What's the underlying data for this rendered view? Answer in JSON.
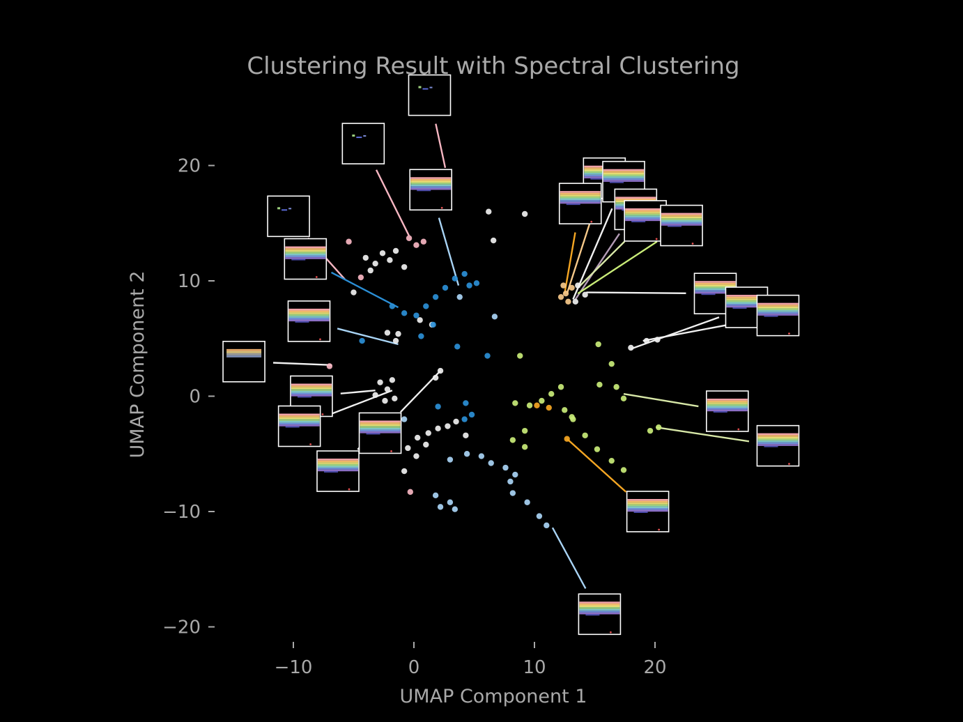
{
  "chart_data": {
    "type": "scatter",
    "title": "Clustering Result with Spectral Clustering",
    "xlabel": "UMAP Component 1",
    "ylabel": "UMAP Component 2",
    "xlim": [
      -10,
      20
    ],
    "ylim": [
      -20,
      20
    ],
    "xticks": [
      -10,
      0,
      10,
      20
    ],
    "yticks": [
      -20,
      -10,
      0,
      10,
      20
    ],
    "tick_labels_x": [
      "−10",
      "0",
      "10",
      "20"
    ],
    "tick_labels_y": [
      "−20",
      "−10",
      "0",
      "10",
      "20"
    ],
    "grid": false,
    "legend": "none",
    "cluster_colors": {
      "white": "#f0f0f0",
      "blue": "#2b8fd6",
      "light_blue": "#a9d4f5",
      "pink": "#f7b6c2",
      "lime": "#c9ec78",
      "orange": "#f5a623",
      "light_orange": "#f7c98a"
    },
    "series": [
      {
        "color": "#f0f0f0",
        "points": [
          [
            -4,
            12
          ],
          [
            -3.2,
            11.5
          ],
          [
            -2.6,
            12.4
          ],
          [
            -2,
            11.8
          ],
          [
            -1.5,
            12.6
          ],
          [
            -3.6,
            10.9
          ],
          [
            -0.8,
            11.2
          ],
          [
            -5,
            9
          ],
          [
            -2.2,
            5.5
          ],
          [
            -1.3,
            5.4
          ],
          [
            -1.5,
            4.8
          ],
          [
            -2.8,
            1.2
          ],
          [
            -2.2,
            0.6
          ],
          [
            -1.8,
            1.4
          ],
          [
            -3.2,
            0.1
          ],
          [
            -2.4,
            -0.4
          ],
          [
            -1.6,
            -0.2
          ],
          [
            2.2,
            2.2
          ],
          [
            1.8,
            1.6
          ],
          [
            -0.5,
            -4.5
          ],
          [
            0.3,
            -3.6
          ],
          [
            1.2,
            -3.2
          ],
          [
            2,
            -2.8
          ],
          [
            2.8,
            -2.6
          ],
          [
            3.5,
            -2.2
          ],
          [
            4.3,
            -3.4
          ],
          [
            1,
            -4.2
          ],
          [
            0.2,
            -5.2
          ],
          [
            -0.8,
            -6.5
          ],
          [
            6.2,
            16
          ],
          [
            9.2,
            15.8
          ],
          [
            6.6,
            13.5
          ],
          [
            14.2,
            8.8
          ],
          [
            13.6,
            9.6
          ],
          [
            13.4,
            8.2
          ],
          [
            18,
            4.2
          ],
          [
            19.3,
            4.8
          ],
          [
            20.2,
            4.9
          ],
          [
            0.5,
            6.6
          ],
          [
            1.5,
            6.2
          ]
        ]
      },
      {
        "color": "#2b8fd6",
        "points": [
          [
            -1.8,
            7.8
          ],
          [
            -0.8,
            7.2
          ],
          [
            0.2,
            7
          ],
          [
            1,
            7.8
          ],
          [
            1.8,
            8.6
          ],
          [
            2.6,
            9.4
          ],
          [
            3.4,
            10.2
          ],
          [
            4.2,
            10.6
          ],
          [
            4.6,
            9.6
          ],
          [
            5.2,
            9.8
          ],
          [
            1.6,
            6.2
          ],
          [
            0.6,
            5.2
          ],
          [
            -4.3,
            4.8
          ],
          [
            3.6,
            4.3
          ],
          [
            6.1,
            3.5
          ],
          [
            4.3,
            -0.6
          ],
          [
            4.8,
            -1.6
          ],
          [
            4.2,
            -2
          ],
          [
            2,
            -0.9
          ]
        ]
      },
      {
        "color": "#a9d4f5",
        "points": [
          [
            -0.8,
            -2
          ],
          [
            3,
            -5.5
          ],
          [
            4.4,
            -5
          ],
          [
            5.6,
            -5.2
          ],
          [
            6.4,
            -5.8
          ],
          [
            7.6,
            -6.2
          ],
          [
            8.4,
            -6.8
          ],
          [
            8,
            -7.4
          ],
          [
            8.2,
            -8.4
          ],
          [
            9.4,
            -9.2
          ],
          [
            10.4,
            -10.4
          ],
          [
            11,
            -11.2
          ],
          [
            1.8,
            -8.6
          ],
          [
            2.2,
            -9.6
          ],
          [
            3,
            -9.2
          ],
          [
            3.4,
            -9.8
          ],
          [
            6.7,
            6.9
          ],
          [
            3.8,
            8.6
          ]
        ]
      },
      {
        "color": "#f7b6c2",
        "points": [
          [
            2.6,
            16.8
          ],
          [
            -0.4,
            13.7
          ],
          [
            0.2,
            13.1
          ],
          [
            0.8,
            13.4
          ],
          [
            -4.4,
            10.3
          ],
          [
            -5.4,
            13.4
          ],
          [
            -7,
            2.6
          ],
          [
            -0.3,
            -8.3
          ]
        ]
      },
      {
        "color": "#c9ec78",
        "points": [
          [
            8.4,
            -0.6
          ],
          [
            9.6,
            -0.8
          ],
          [
            10.6,
            -0.4
          ],
          [
            11.4,
            0.2
          ],
          [
            12.2,
            0.8
          ],
          [
            12.5,
            -1.2
          ],
          [
            13.1,
            -1.8
          ],
          [
            9.2,
            -3
          ],
          [
            8.2,
            -3.8
          ],
          [
            9.2,
            -4.4
          ],
          [
            13.2,
            -2
          ],
          [
            14.2,
            -3.4
          ],
          [
            15.2,
            -4.6
          ],
          [
            16.4,
            -5.6
          ],
          [
            17.4,
            -6.4
          ],
          [
            15.4,
            1
          ],
          [
            16.8,
            0.8
          ],
          [
            17.4,
            -0.2
          ],
          [
            16.4,
            2.8
          ],
          [
            19.6,
            -3
          ],
          [
            20.3,
            -2.7
          ],
          [
            15.3,
            4.5
          ],
          [
            8.8,
            3.5
          ]
        ]
      },
      {
        "color": "#f5a623",
        "points": [
          [
            12.7,
            -3.7
          ],
          [
            10.2,
            -0.8
          ],
          [
            11.2,
            -1
          ]
        ]
      },
      {
        "color": "#f7c98a",
        "points": [
          [
            12.6,
            8.9
          ],
          [
            12.4,
            9.6
          ],
          [
            13.1,
            9.4
          ],
          [
            12.8,
            8.2
          ],
          [
            12.2,
            8.6
          ]
        ]
      }
    ],
    "thumbnails": [
      {
        "cx": 1.3,
        "cy": 26.1,
        "anchor_x": 2.6,
        "anchor_y": 19.8,
        "color": "#f7b6c2",
        "kind": "sparse"
      },
      {
        "cx": -4.2,
        "cy": 21.9,
        "anchor_x": -0.4,
        "anchor_y": 13.9,
        "color": "#f7b6c2",
        "kind": "sparse"
      },
      {
        "cx": 1.4,
        "cy": 17.9,
        "anchor_x": 3.7,
        "anchor_y": 9.6,
        "color": "#a9d4f5",
        "kind": "stripes"
      },
      {
        "cx": -10.4,
        "cy": 15.6,
        "anchor_x": -5.7,
        "anchor_y": 10.1,
        "color": "#f7b6c2",
        "kind": "sparse"
      },
      {
        "cx": -9,
        "cy": 11.9,
        "anchor_x": -1.3,
        "anchor_y": 7.7,
        "color": "#2b8fd6",
        "kind": "stripes"
      },
      {
        "cx": -8.7,
        "cy": 6.5,
        "anchor_x": -1.3,
        "anchor_y": 4.5,
        "color": "#a9d4f5",
        "kind": "stripes"
      },
      {
        "cx": -14.1,
        "cy": 3,
        "anchor_x": -6.8,
        "anchor_y": 2.7,
        "color": "#f0f0f0",
        "kind": "band"
      },
      {
        "cx": -8.5,
        "cy": 0,
        "anchor_x": -3.2,
        "anchor_y": 0.5,
        "color": "#f0f0f0",
        "kind": "stripes"
      },
      {
        "cx": -9.5,
        "cy": -2.6,
        "anchor_x": -1.8,
        "anchor_y": 0.5,
        "color": "#f0f0f0",
        "kind": "stripes"
      },
      {
        "cx": -2.8,
        "cy": -3.2,
        "anchor_x": 2.2,
        "anchor_y": 2.2,
        "color": "#f0f0f0",
        "kind": "stripes"
      },
      {
        "cx": -6.3,
        "cy": -6.5,
        "anchor_x": -2.2,
        "anchor_y": -1.8,
        "color": "#f0f0f0",
        "kind": "stripes"
      },
      {
        "cx": 15.8,
        "cy": 18.9,
        "anchor_x": 12.7,
        "anchor_y": 8.9,
        "color": "#f7c98a",
        "kind": "stripes"
      },
      {
        "cx": 17.4,
        "cy": 18.6,
        "anchor_x": 13.2,
        "anchor_y": 8.4,
        "color": "#f0f0f0",
        "kind": "stripes"
      },
      {
        "cx": 18.4,
        "cy": 16.2,
        "anchor_x": 13.4,
        "anchor_y": 8.4,
        "color": "#b39bb5",
        "kind": "stripes"
      },
      {
        "cx": 19.2,
        "cy": 15.2,
        "anchor_x": 13.8,
        "anchor_y": 9.6,
        "color": "#d8e8a8",
        "kind": "stripes"
      },
      {
        "cx": 22.2,
        "cy": 14.8,
        "anchor_x": 13.6,
        "anchor_y": 8.9,
        "color": "#c9ec78",
        "kind": "stripes"
      },
      {
        "cx": 13.8,
        "cy": 16.7,
        "anchor_x": 12.5,
        "anchor_y": 8.9,
        "color": "#f5a623",
        "kind": "stripes"
      },
      {
        "cx": 25,
        "cy": 8.9,
        "anchor_x": 14.3,
        "anchor_y": 9,
        "color": "#f0f0f0",
        "kind": "stripes"
      },
      {
        "cx": 27.6,
        "cy": 7.7,
        "anchor_x": 18,
        "anchor_y": 4.1,
        "color": "#f0f0f0",
        "kind": "stripes"
      },
      {
        "cx": 30.2,
        "cy": 7,
        "anchor_x": 19,
        "anchor_y": 4.8,
        "color": "#f0f0f0",
        "kind": "stripes"
      },
      {
        "cx": 26,
        "cy": -1.3,
        "anchor_x": 17.4,
        "anchor_y": 0.2,
        "color": "#d8e8a8",
        "kind": "stripes"
      },
      {
        "cx": 30.2,
        "cy": -4.3,
        "anchor_x": 20.1,
        "anchor_y": -2.7,
        "color": "#d8e8a8",
        "kind": "stripes"
      },
      {
        "cx": 19.4,
        "cy": -10,
        "anchor_x": 12.7,
        "anchor_y": -3.7,
        "color": "#f5a623",
        "kind": "stripes"
      },
      {
        "cx": 15.4,
        "cy": -18.9,
        "anchor_x": 11.5,
        "anchor_y": -11.4,
        "color": "#a9d4f5",
        "kind": "stripes"
      }
    ]
  }
}
